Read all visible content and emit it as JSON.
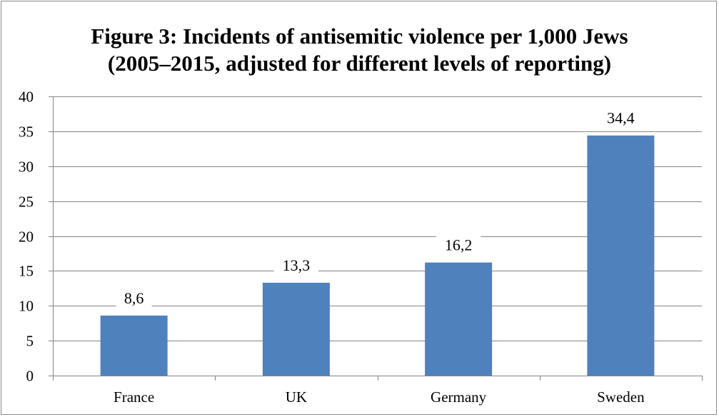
{
  "chart_data": {
    "type": "bar",
    "title_lines": [
      "Figure 3: Incidents of  antisemitic violence per 1,000 Jews",
      "(2005–2015, adjusted for different levels of  reporting)"
    ],
    "categories": [
      "France",
      "UK",
      "Germany",
      "Sweden"
    ],
    "values": [
      8.6,
      13.3,
      16.2,
      34.4
    ],
    "data_labels": [
      "8,6",
      "13,3",
      "16,2",
      "34,4"
    ],
    "y_ticks": [
      "0",
      "5",
      "10",
      "15",
      "20",
      "25",
      "30",
      "35",
      "40"
    ],
    "ylim": [
      0,
      40
    ],
    "ystep": 5,
    "grid": true,
    "legend": "none",
    "bar_color": "#4f81bd",
    "grid_color": "#868686"
  }
}
